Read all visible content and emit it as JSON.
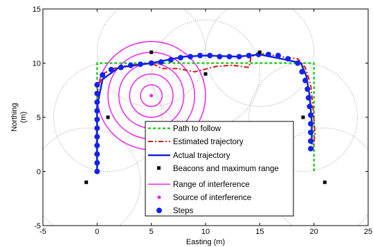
{
  "chart_data": {
    "type": "scatter",
    "xlabel": "Easting (m)",
    "ylabel_lines": [
      "Northing",
      "(m)"
    ],
    "xlim": [
      -5,
      25
    ],
    "ylim": [
      -5,
      15
    ],
    "xticks": [
      -5,
      0,
      5,
      10,
      15,
      20,
      25
    ],
    "yticks": [
      -5,
      0,
      5,
      10,
      15
    ],
    "grid": false,
    "legend_position": "bottom-center",
    "legend_entries": [
      "Path to follow",
      "Estimated trajectory",
      "Actual trajectory",
      "Beacons and maximum range",
      "Range of interference",
      "Source of interference",
      "Steps"
    ],
    "colors": {
      "path": "#22cc22",
      "estimated": "#dd1111",
      "actual": "#1122dd",
      "beacon": "#000000",
      "interference": "#ee22ee",
      "steps": "#1122ee",
      "range": "#999999"
    },
    "beacon_range": 5,
    "path_to_follow": [
      [
        0,
        0
      ],
      [
        0,
        10
      ],
      [
        20,
        10
      ],
      [
        20,
        0
      ]
    ],
    "beacons": [
      [
        -1,
        -1
      ],
      [
        1,
        5
      ],
      [
        5,
        11
      ],
      [
        10,
        9
      ],
      [
        15,
        11
      ],
      [
        19,
        5
      ],
      [
        21,
        -1
      ]
    ],
    "interference_source": [
      5,
      7
    ],
    "interference_radii": [
      1,
      2,
      3,
      4,
      5
    ],
    "estimated_trajectory": [
      [
        -0.05,
        0.5
      ],
      [
        -0.05,
        4.0
      ],
      [
        0.05,
        7.5
      ],
      [
        0.5,
        9.0
      ],
      [
        1.5,
        9.5
      ],
      [
        3.0,
        9.8
      ],
      [
        5.0,
        10.0
      ],
      [
        6.0,
        9.5
      ],
      [
        7.5,
        9.5
      ],
      [
        9.0,
        9.2
      ],
      [
        11.0,
        9.7
      ],
      [
        12.5,
        9.8
      ],
      [
        14.0,
        9.6
      ],
      [
        14.2,
        10.6
      ],
      [
        15.2,
        10.9
      ],
      [
        17.0,
        10.6
      ],
      [
        18.5,
        10.4
      ],
      [
        19.2,
        9.6
      ],
      [
        19.7,
        8.0
      ],
      [
        19.9,
        6.0
      ],
      [
        20.1,
        3.5
      ],
      [
        19.9,
        2.0
      ]
    ],
    "actual_trajectory": [
      [
        0,
        0
      ],
      [
        0,
        2
      ],
      [
        0,
        4
      ],
      [
        0,
        6
      ],
      [
        0.5,
        8.5
      ],
      [
        2,
        9.6
      ],
      [
        5,
        10
      ],
      [
        8,
        10.6
      ],
      [
        10,
        10.7
      ],
      [
        13,
        10.6
      ],
      [
        15,
        10.8
      ],
      [
        17.5,
        10.3
      ],
      [
        18.8,
        10.0
      ],
      [
        19.3,
        8.8
      ],
      [
        19.6,
        7.0
      ],
      [
        19.8,
        4.5
      ],
      [
        19.8,
        2.5
      ]
    ],
    "steps": [
      [
        0,
        0.0
      ],
      [
        0,
        0.8
      ],
      [
        0,
        1.6
      ],
      [
        0,
        2.4
      ],
      [
        0,
        3.2
      ],
      [
        0,
        4.0
      ],
      [
        0,
        4.8
      ],
      [
        0,
        5.6
      ],
      [
        0,
        6.4
      ],
      [
        0,
        7.2
      ],
      [
        0,
        8.0
      ],
      [
        0.5,
        8.9
      ],
      [
        1.3,
        9.4
      ],
      [
        2.2,
        9.6
      ],
      [
        3.1,
        9.8
      ],
      [
        4.0,
        9.9
      ],
      [
        5.0,
        10.0
      ],
      [
        5.9,
        10.1
      ],
      [
        6.8,
        10.3
      ],
      [
        7.7,
        10.5
      ],
      [
        8.6,
        10.6
      ],
      [
        9.5,
        10.7
      ],
      [
        10.4,
        10.7
      ],
      [
        11.3,
        10.6
      ],
      [
        12.2,
        10.6
      ],
      [
        13.1,
        10.6
      ],
      [
        14.0,
        10.7
      ],
      [
        14.9,
        10.8
      ],
      [
        15.8,
        10.8
      ],
      [
        16.7,
        10.7
      ],
      [
        17.6,
        10.4
      ],
      [
        18.5,
        10.0
      ],
      [
        18.9,
        9.2
      ],
      [
        19.2,
        8.4
      ],
      [
        19.4,
        7.6
      ],
      [
        19.5,
        6.8
      ],
      [
        19.6,
        6.0
      ],
      [
        19.7,
        5.2
      ],
      [
        19.7,
        4.4
      ],
      [
        19.7,
        3.6
      ],
      [
        19.7,
        2.8
      ],
      [
        19.7,
        2.1
      ]
    ]
  }
}
